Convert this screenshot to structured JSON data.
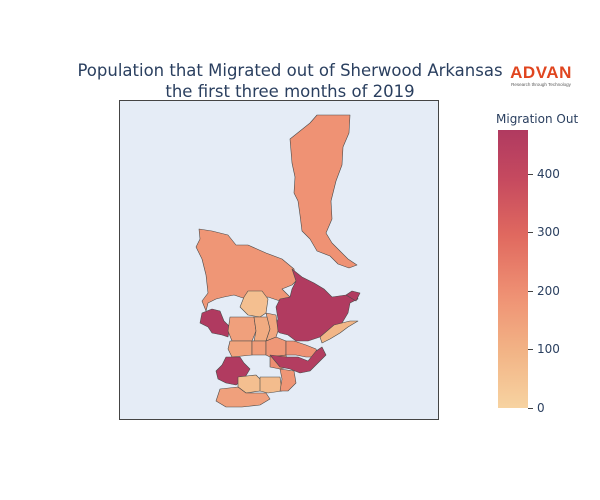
{
  "title_line1": "Population that Migrated out of Sherwood Arkansas",
  "title_line2": "the first three months of 2019",
  "logo": {
    "wordmark": "ADVAN",
    "tagline": "Research through Technology",
    "color": "#e0451f"
  },
  "colorbar": {
    "title": "Migration Out",
    "min": 0,
    "max": 475,
    "ticks": [
      "0",
      "100",
      "200",
      "300",
      "400"
    ],
    "colorscale": [
      "#f7d3a1",
      "#f2b486",
      "#ef9274",
      "#e0695f",
      "#c64a5f",
      "#b03a60"
    ]
  },
  "chart_data": {
    "type": "choropleth",
    "title": "Population that Migrated out of Sherwood Arkansas the first three months of 2019",
    "value_label": "Migration Out",
    "range": [
      0,
      475
    ],
    "regions": [
      {
        "id": "north-tract",
        "value": 190
      },
      {
        "id": "west-tract",
        "value": 180
      },
      {
        "id": "west-tab",
        "value": 475
      },
      {
        "id": "central-east-tract",
        "value": 470
      },
      {
        "id": "central-east-nub",
        "value": 470
      },
      {
        "id": "small-light-north",
        "value": 60
      },
      {
        "id": "grid-a",
        "value": 150
      },
      {
        "id": "grid-b",
        "value": 120
      },
      {
        "id": "grid-c",
        "value": 140
      },
      {
        "id": "grid-d",
        "value": 160
      },
      {
        "id": "grid-e",
        "value": 175
      },
      {
        "id": "grid-f",
        "value": 130
      },
      {
        "id": "middle-strip",
        "value": 190
      },
      {
        "id": "center-small",
        "value": 200
      },
      {
        "id": "east-spike-light",
        "value": 90
      },
      {
        "id": "south-west-dark",
        "value": 470
      },
      {
        "id": "south-center-dark",
        "value": 460
      },
      {
        "id": "south-light-a",
        "value": 60
      },
      {
        "id": "south-light-b",
        "value": 70
      },
      {
        "id": "south-orange",
        "value": 180
      },
      {
        "id": "south-tail",
        "value": 150
      }
    ]
  }
}
